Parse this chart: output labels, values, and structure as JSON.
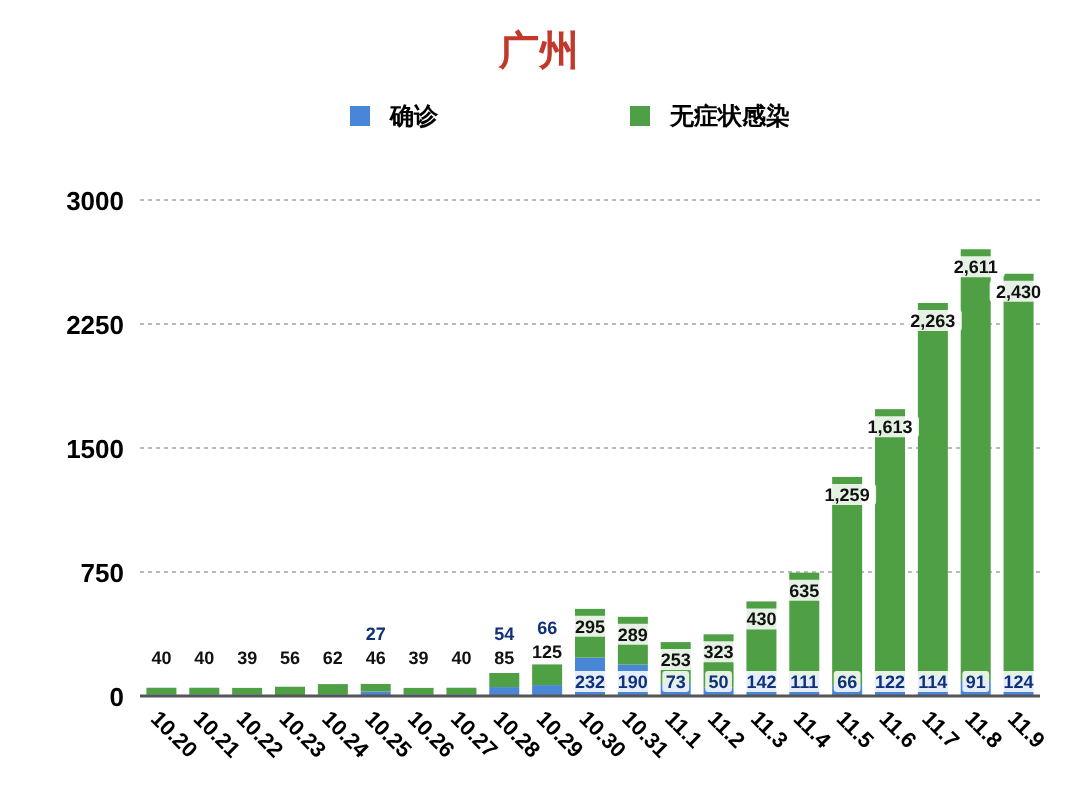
{
  "chart_data": {
    "type": "bar",
    "title": "广州",
    "stacked": true,
    "legend": "top",
    "grid": "y",
    "categories": [
      "10.20",
      "10.21",
      "10.22",
      "10.23",
      "10.24",
      "10.25",
      "10.26",
      "10.27",
      "10.28",
      "10.29",
      "10.30",
      "10.31",
      "11.1",
      "11.2",
      "11.3",
      "11.4",
      "11.5",
      "11.6",
      "11.7",
      "11.8",
      "11.9"
    ],
    "ylim": [
      0,
      3000
    ],
    "yticks": [
      0,
      750,
      1500,
      2250,
      3000
    ],
    "series": [
      {
        "name": "确诊",
        "color": "#4a86d8",
        "values": [
          10,
          10,
          10,
          0,
          10,
          27,
          10,
          10,
          54,
          66,
          232,
          190,
          73,
          50,
          142,
          111,
          66,
          122,
          114,
          91,
          124
        ],
        "value_labels": [
          null,
          null,
          null,
          null,
          null,
          "27",
          null,
          null,
          "54",
          "66",
          "232",
          "190",
          "73",
          "50",
          "142",
          "111",
          "66",
          "122",
          "114",
          "91",
          "124"
        ]
      },
      {
        "name": "无症状感染",
        "color": "#4f9f45",
        "values": [
          40,
          40,
          39,
          56,
          62,
          46,
          39,
          40,
          85,
          125,
          295,
          289,
          253,
          323,
          430,
          635,
          1259,
          1613,
          2263,
          2611,
          2430
        ],
        "value_labels": [
          "40",
          "40",
          "39",
          "56",
          "62",
          "46",
          "39",
          "40",
          "85",
          "125",
          "295",
          "289",
          "253",
          "323",
          "430",
          "635",
          "1,259",
          "1,613",
          "2,263",
          "2,611",
          "2,430"
        ]
      }
    ]
  }
}
